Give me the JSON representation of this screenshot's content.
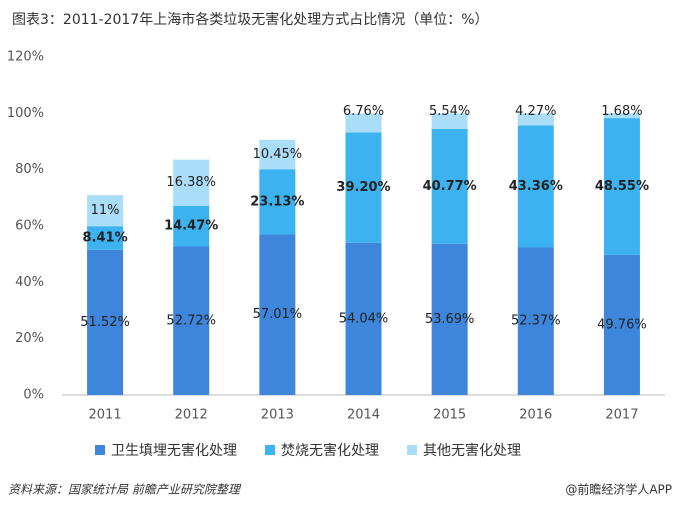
{
  "chart_data": {
    "type": "stacked_bar",
    "title": "图表3：2011-2017年上海市各类垃圾无害化处理方式占比情况（单位：%）",
    "categories": [
      "2011",
      "2012",
      "2013",
      "2014",
      "2015",
      "2016",
      "2017"
    ],
    "series": [
      {
        "name": "卫生填埋无害化处理",
        "color": "#3d86dc",
        "values": [
          51.52,
          52.72,
          57.01,
          54.04,
          53.69,
          52.37,
          49.76
        ],
        "value_labels": [
          "51.52%",
          "52.72%",
          "57.01%",
          "54.04%",
          "53.69%",
          "52.37%",
          "49.76%"
        ]
      },
      {
        "name": "焚烧无害化处理",
        "color": "#3cb3f0",
        "values": [
          8.41,
          14.47,
          23.13,
          39.2,
          40.77,
          43.36,
          48.55
        ],
        "value_labels": [
          "8.41%",
          "14.47%",
          "23.13%",
          "39.20%",
          "40.77%",
          "43.36%",
          "48.55%"
        ]
      },
      {
        "name": "其他无害化处理",
        "color": "#a9ddf8",
        "values": [
          11,
          16.38,
          10.45,
          6.76,
          5.54,
          4.27,
          1.68
        ],
        "value_labels": [
          "11%",
          "16.38%",
          "10.45%",
          "6.76%",
          "5.54%",
          "4.27%",
          "1.68%"
        ]
      }
    ],
    "ylim": [
      0,
      120
    ],
    "yticks": [
      {
        "value": 0,
        "label": "0%"
      },
      {
        "value": 20,
        "label": "20%"
      },
      {
        "value": 40,
        "label": "40%"
      },
      {
        "value": 60,
        "label": "60%"
      },
      {
        "value": 80,
        "label": "80%"
      },
      {
        "value": 100,
        "label": "100%"
      },
      {
        "value": 120,
        "label": "120%"
      }
    ],
    "grid": false,
    "source": "资料来源：国家统计局 前瞻产业研究院整理",
    "footer": "@前瞻经济学人APP"
  }
}
